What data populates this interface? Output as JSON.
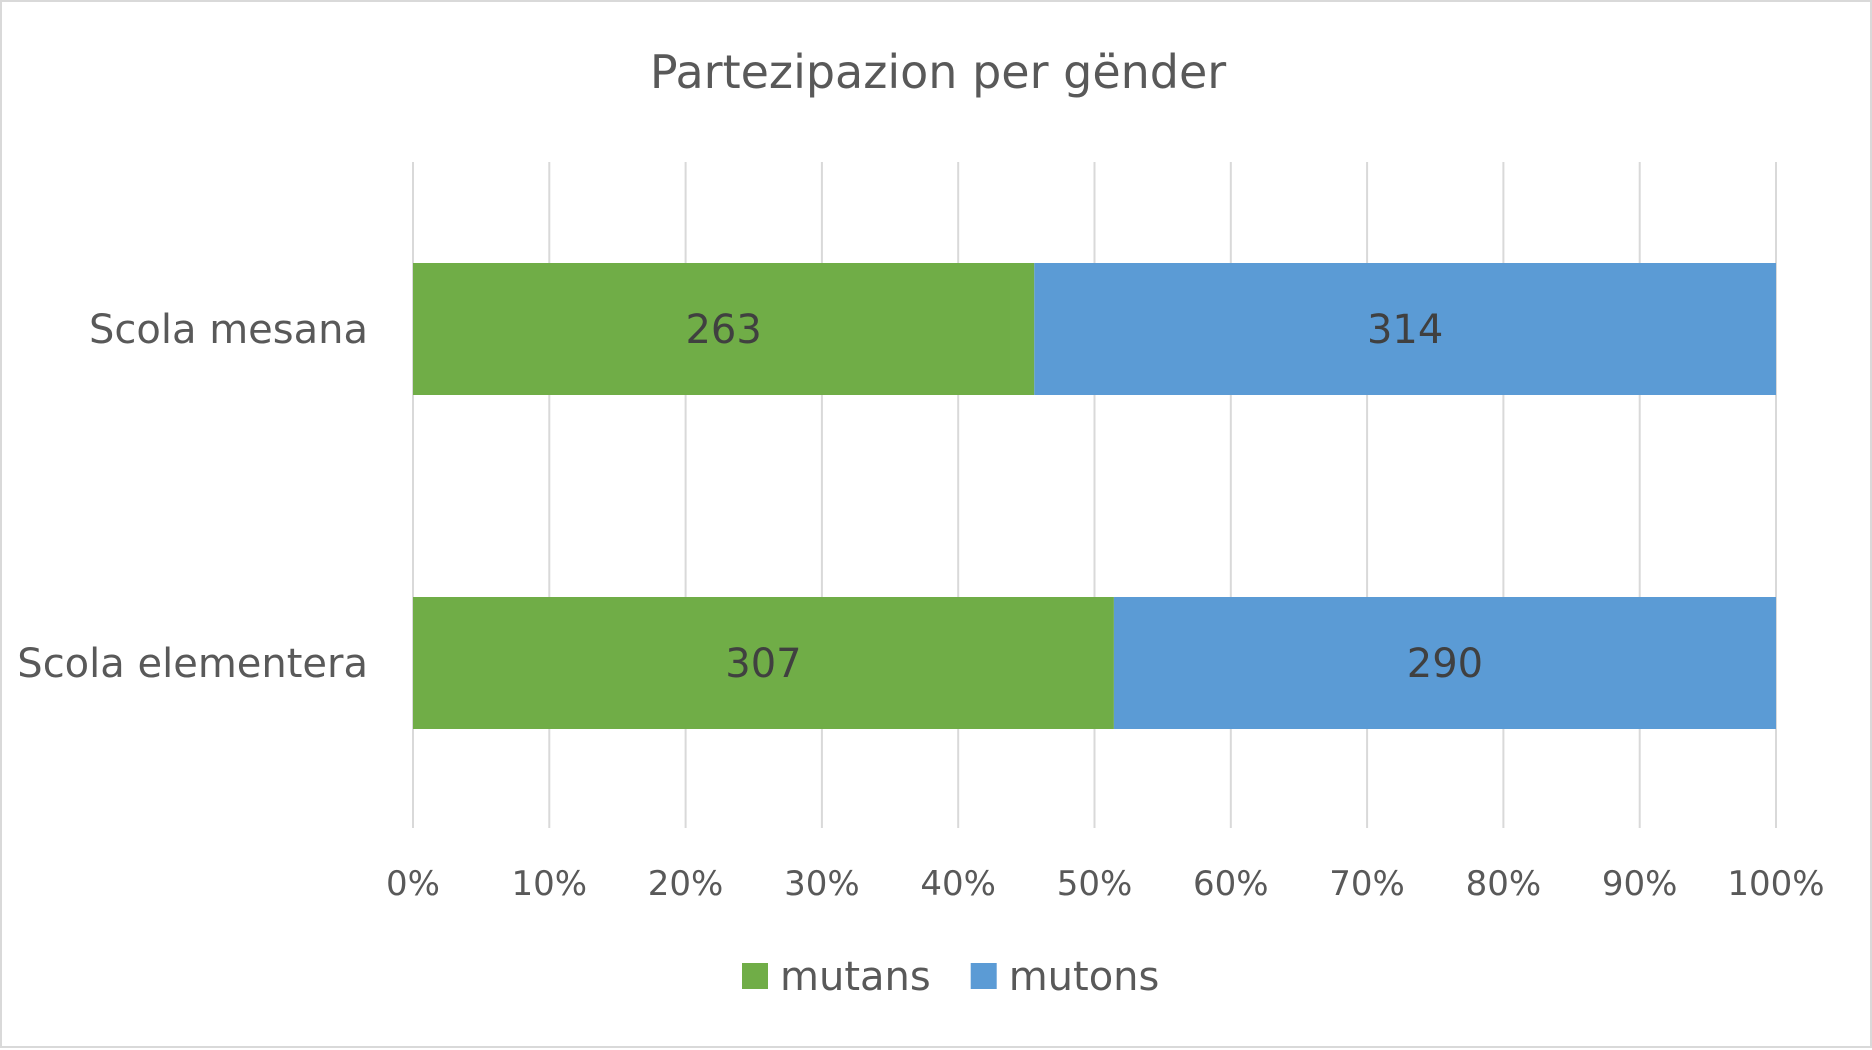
{
  "chart_data": {
    "type": "bar",
    "orientation": "horizontal",
    "stacking": "percent",
    "title": "Partezipazion per gënder",
    "categories": [
      "Scola mesana",
      "Scola elementera"
    ],
    "series": [
      {
        "name": "mutans",
        "values": [
          263,
          307
        ],
        "color": "#70ad47"
      },
      {
        "name": "mutons",
        "values": [
          314,
          290
        ],
        "color": "#5b9bd5"
      }
    ],
    "xticks": [
      "0%",
      "10%",
      "20%",
      "30%",
      "40%",
      "50%",
      "60%",
      "70%",
      "80%",
      "90%",
      "100%"
    ],
    "xlim": [
      0,
      100
    ],
    "grid": "vertical",
    "legend_position": "bottom"
  }
}
